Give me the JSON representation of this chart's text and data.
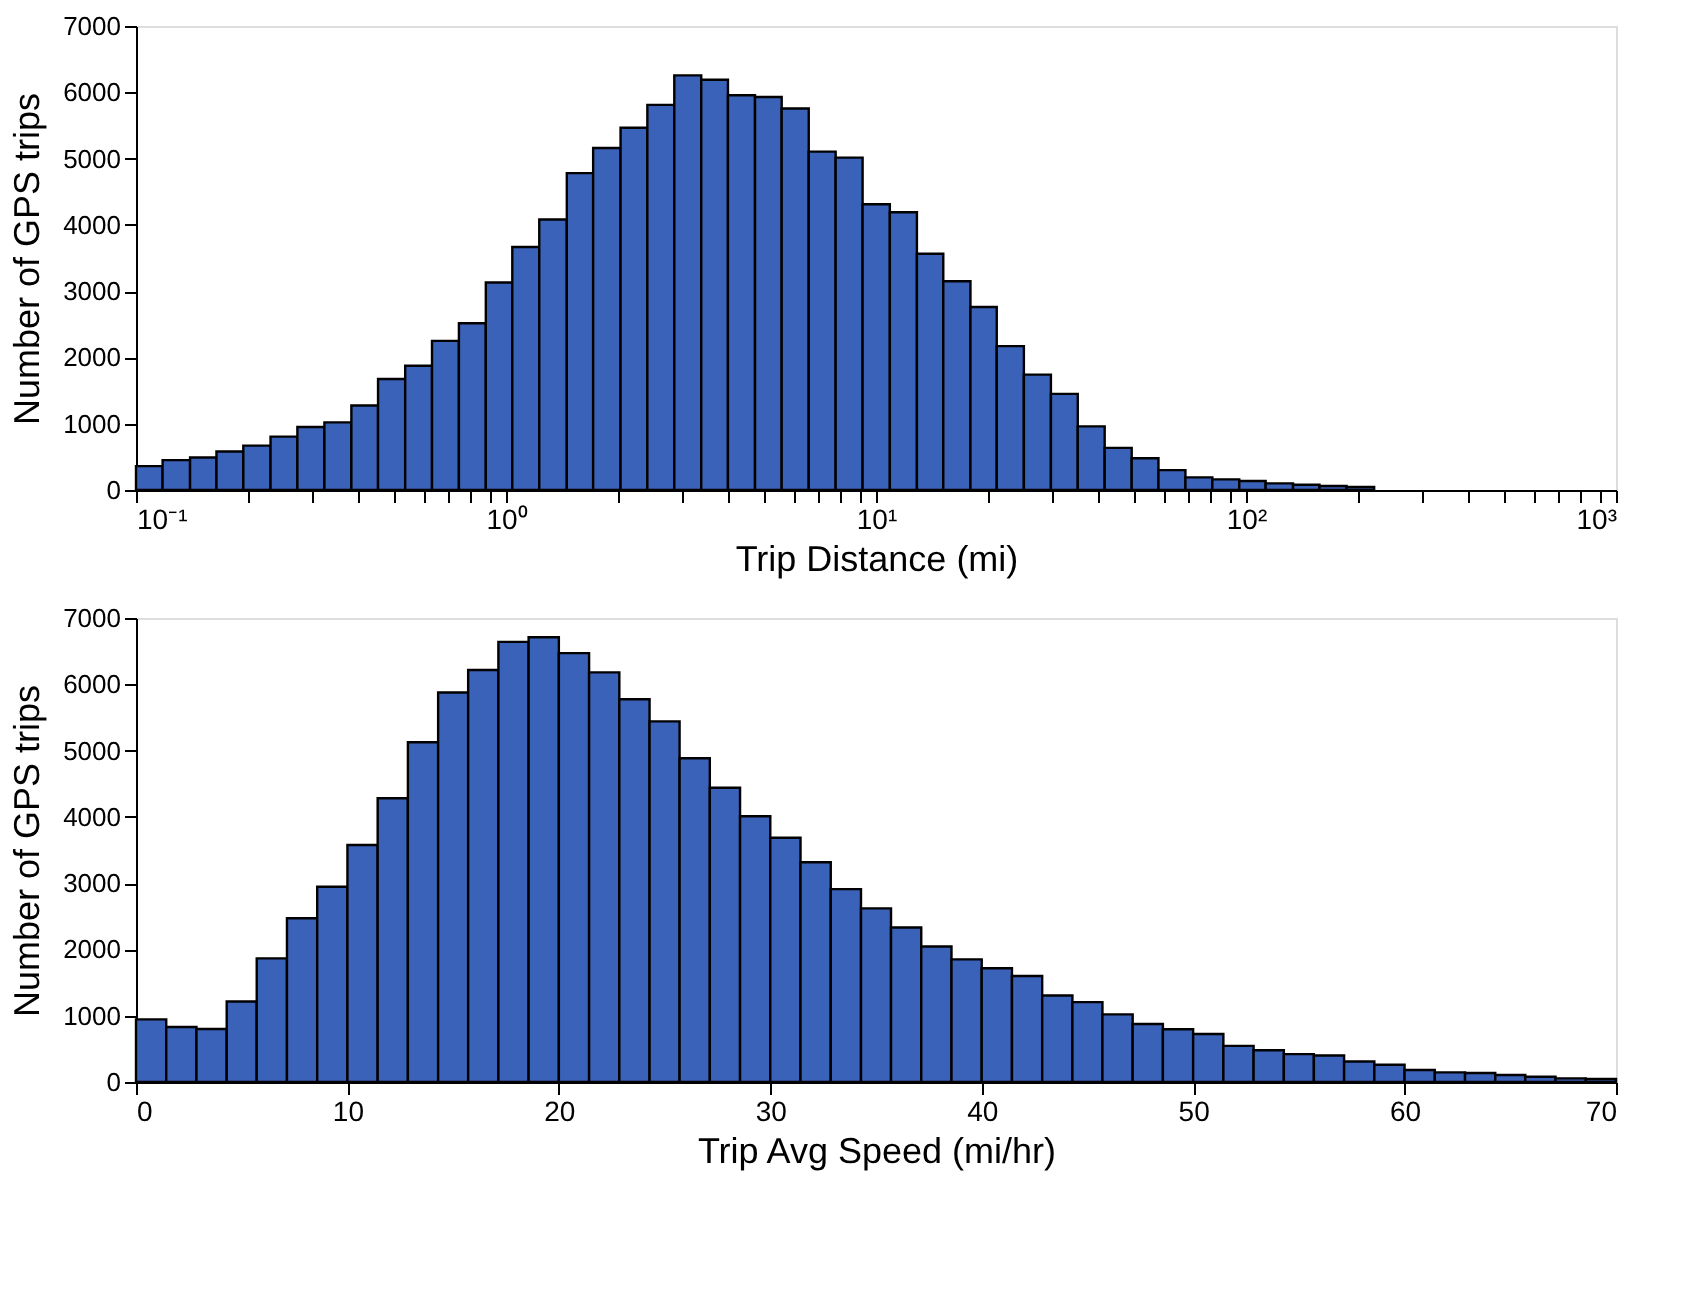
{
  "chart_data": [
    {
      "type": "histogram",
      "xlabel": "Trip Distance (mi)",
      "ylabel": "Number of GPS trips",
      "log": "x",
      "color": "#3a62b8",
      "bins": [
        0.1,
        0.118,
        0.14,
        0.165,
        0.195,
        0.231,
        0.273,
        0.323,
        0.382,
        0.451,
        0.534,
        0.631,
        0.746,
        0.882,
        1.04,
        1.23,
        1.46,
        1.72,
        2.04,
        2.41,
        2.85,
        3.37,
        3.98,
        4.71,
        5.56,
        6.58,
        7.78,
        9.2,
        10.9,
        12.9,
        15.2,
        18,
        21.2,
        25.1,
        29.7,
        35.1,
        41.5,
        49.1,
        58,
        68.6,
        81.1,
        95.9,
        113,
        134,
        158,
        187,
        222
      ],
      "values": [
        360,
        450,
        490,
        580,
        670,
        805,
        950,
        1020,
        1275,
        1675,
        1875,
        2250,
        2515,
        3130,
        3665,
        4080,
        4780,
        5160,
        5465,
        5810,
        6255,
        6190,
        5955,
        5930,
        5755,
        5105,
        5015,
        4310,
        4190,
        3565,
        3150,
        2760,
        2170,
        1740,
        1450,
        960,
        635,
        480,
        300,
        190,
        160,
        135,
        100,
        80,
        60,
        45
      ],
      "xlim": [
        0.1,
        1000
      ],
      "ylim": [
        0,
        7000
      ],
      "xticks": [
        {
          "value": 0.1,
          "label": "10⁻¹"
        },
        {
          "value": 0.2,
          "label": null
        },
        {
          "value": 0.3,
          "label": null
        },
        {
          "value": 0.4,
          "label": null
        },
        {
          "value": 0.5,
          "label": null
        },
        {
          "value": 0.6,
          "label": null
        },
        {
          "value": 0.7,
          "label": null
        },
        {
          "value": 0.8,
          "label": null
        },
        {
          "value": 0.9,
          "label": null
        },
        {
          "value": 1,
          "label": "10⁰"
        },
        {
          "value": 2,
          "label": null
        },
        {
          "value": 3,
          "label": null
        },
        {
          "value": 4,
          "label": null
        },
        {
          "value": 5,
          "label": null
        },
        {
          "value": 6,
          "label": null
        },
        {
          "value": 7,
          "label": null
        },
        {
          "value": 8,
          "label": null
        },
        {
          "value": 9,
          "label": null
        },
        {
          "value": 10,
          "label": "10¹"
        },
        {
          "value": 20,
          "label": null
        },
        {
          "value": 30,
          "label": null
        },
        {
          "value": 40,
          "label": null
        },
        {
          "value": 50,
          "label": null
        },
        {
          "value": 60,
          "label": null
        },
        {
          "value": 70,
          "label": null
        },
        {
          "value": 80,
          "label": null
        },
        {
          "value": 90,
          "label": null
        },
        {
          "value": 100,
          "label": "10²"
        },
        {
          "value": 200,
          "label": null
        },
        {
          "value": 300,
          "label": null
        },
        {
          "value": 400,
          "label": null
        },
        {
          "value": 500,
          "label": null
        },
        {
          "value": 600,
          "label": null
        },
        {
          "value": 700,
          "label": null
        },
        {
          "value": 800,
          "label": null
        },
        {
          "value": 900,
          "label": null
        },
        {
          "value": 1000,
          "label": "10³"
        }
      ],
      "yticks": [
        0,
        1000,
        2000,
        3000,
        4000,
        5000,
        6000,
        7000
      ],
      "grid": false
    },
    {
      "type": "histogram",
      "xlabel": "Trip Avg Speed (mi/hr)",
      "ylabel": "Number of GPS trips",
      "color": "#3a62b8",
      "bins": [
        0,
        1.43,
        2.86,
        4.29,
        5.71,
        7.14,
        8.57,
        10,
        11.43,
        12.86,
        14.29,
        15.71,
        17.14,
        18.57,
        20,
        21.43,
        22.86,
        24.29,
        25.71,
        27.14,
        28.57,
        30,
        31.43,
        32.86,
        34.29,
        35.71,
        37.14,
        38.57,
        40,
        41.43,
        42.86,
        44.29,
        45.71,
        47.14,
        48.57,
        50,
        51.43,
        52.86,
        54.29,
        55.71,
        57.14,
        58.57,
        60,
        61.43,
        62.86,
        64.29,
        65.71,
        67.14,
        68.57,
        70
      ],
      "values": [
        945,
        830,
        800,
        1215,
        1865,
        2470,
        2945,
        3575,
        4280,
        5125,
        5875,
        6215,
        6640,
        6710,
        6470,
        6180,
        5775,
        5440,
        4885,
        4440,
        4010,
        3685,
        3315,
        2910,
        2620,
        2330,
        2045,
        1850,
        1715,
        1600,
        1305,
        1205,
        1020,
        875,
        795,
        725,
        545,
        480,
        420,
        400,
        310,
        260,
        180,
        145,
        135,
        105,
        80,
        55,
        45
      ],
      "xlim": [
        0,
        70
      ],
      "ylim": [
        0,
        7000
      ],
      "xticks": [
        0,
        10,
        20,
        30,
        40,
        50,
        60,
        70
      ],
      "yticks": [
        0,
        1000,
        2000,
        3000,
        4000,
        5000,
        6000,
        7000
      ],
      "grid": false
    }
  ]
}
